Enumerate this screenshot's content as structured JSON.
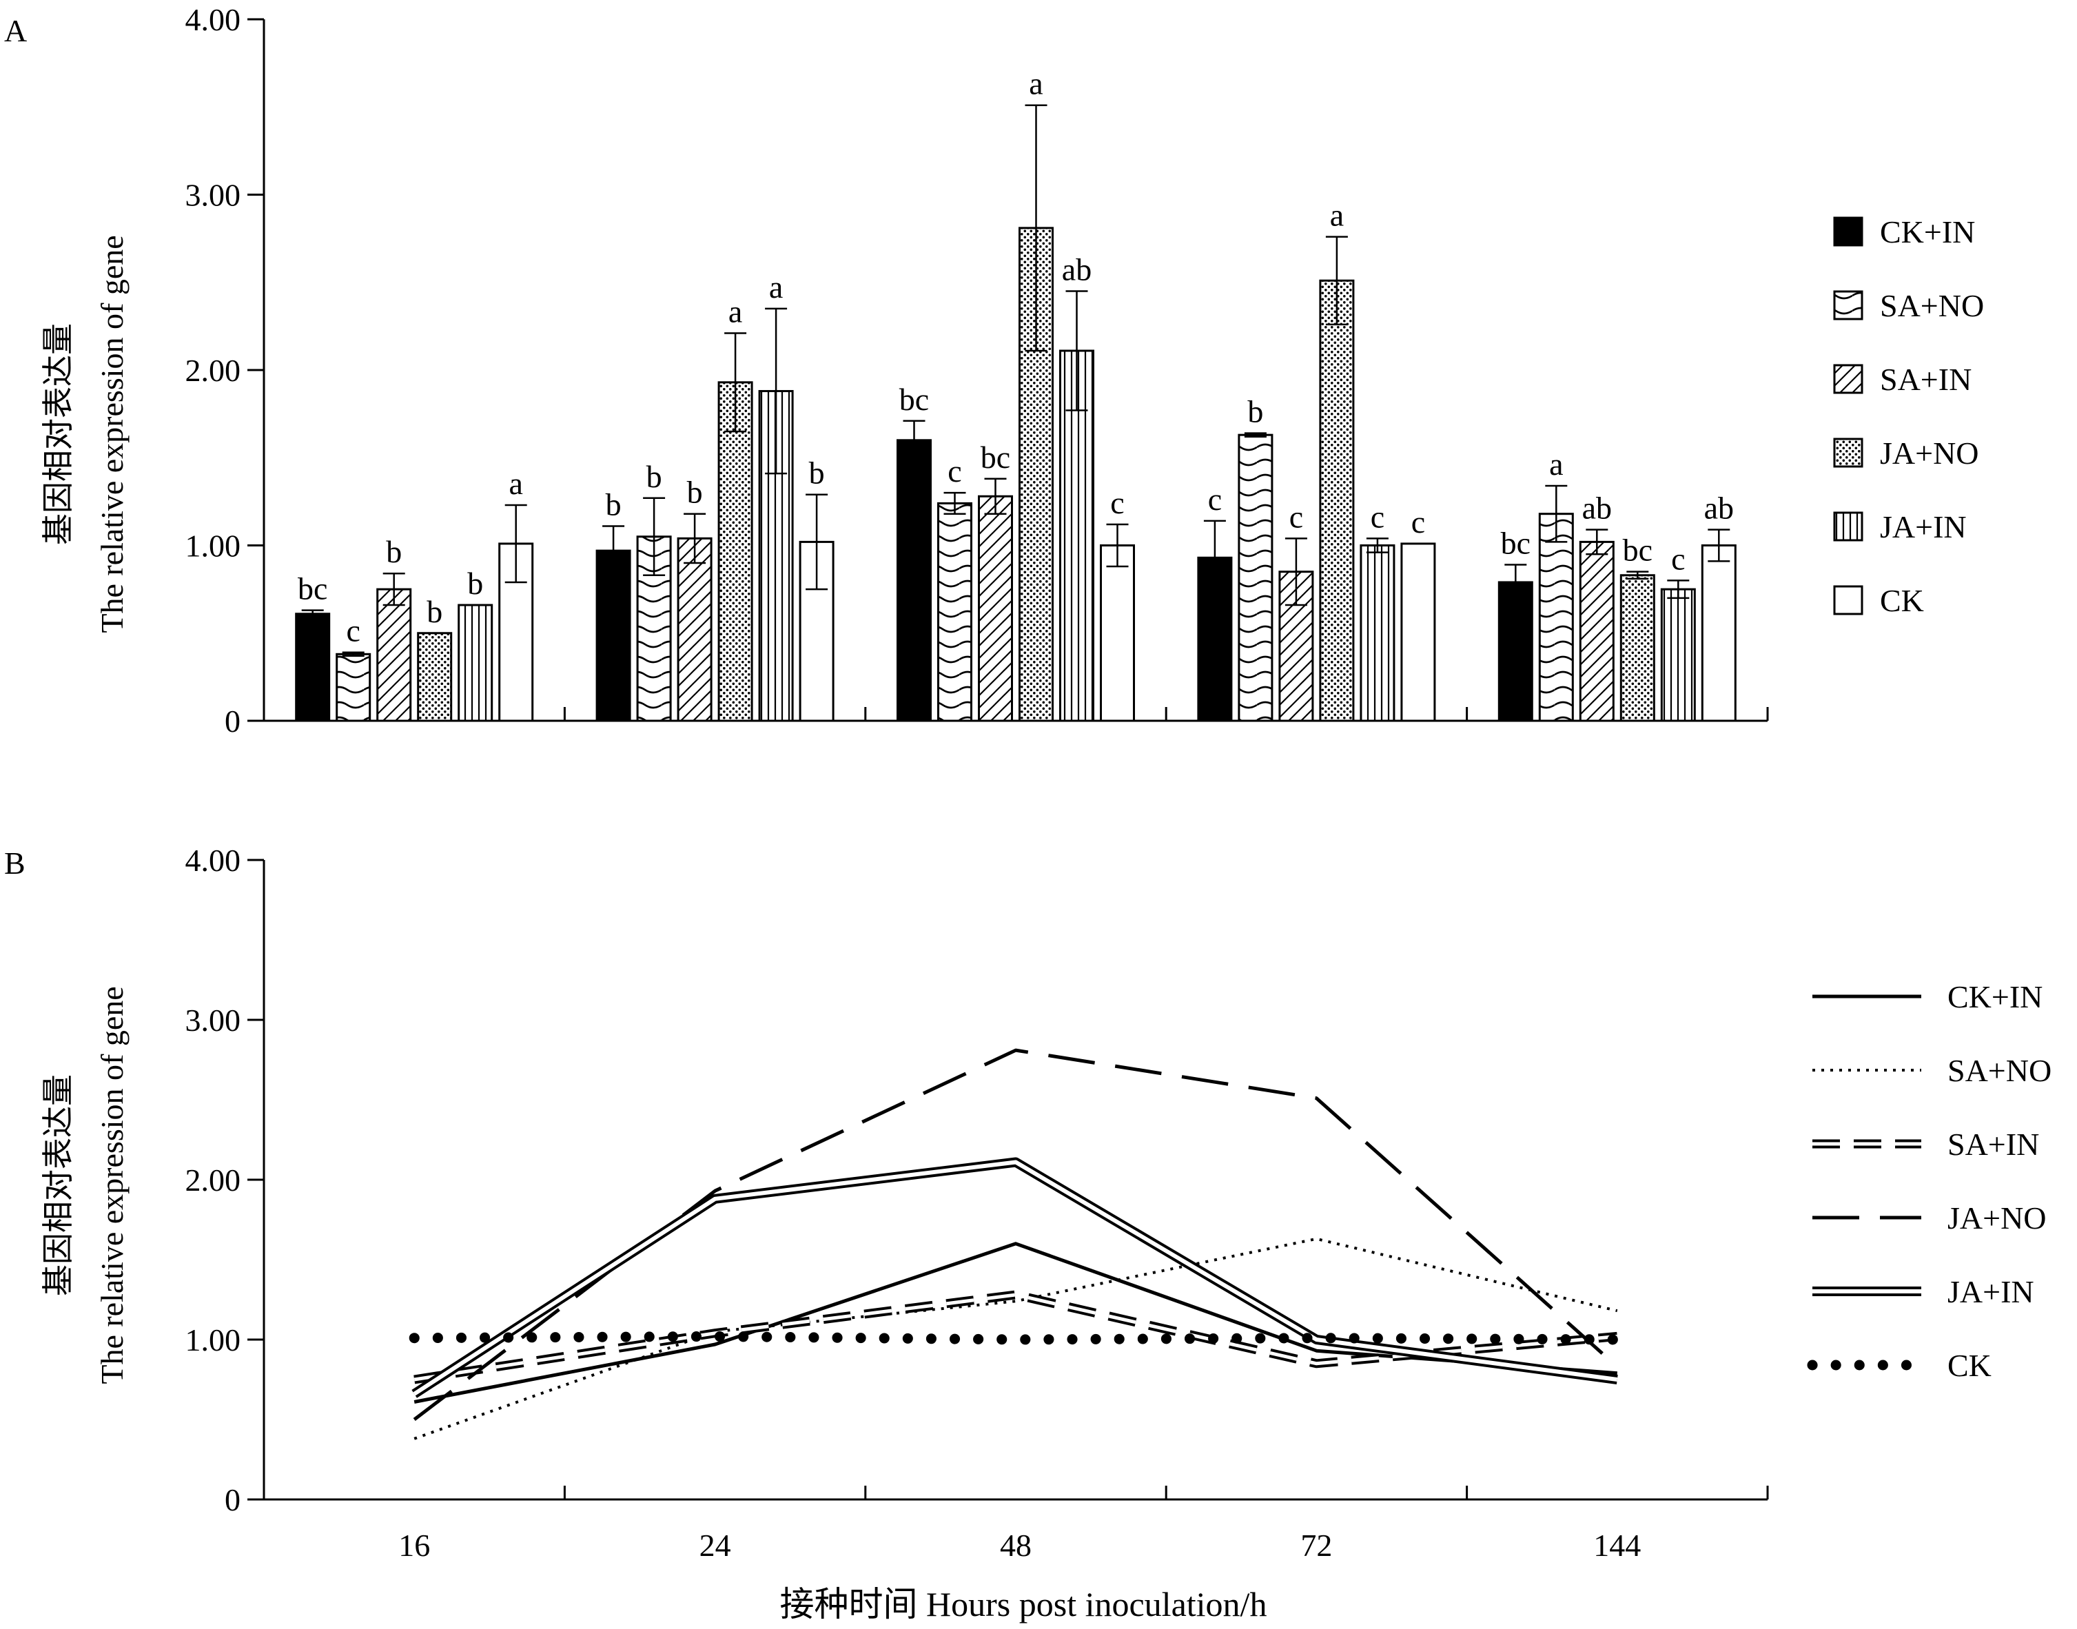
{
  "figure": {
    "panel_a_tag": "A",
    "panel_b_tag": "B",
    "ylabel_cn": "基因相对表达量",
    "ylabel_en": "The relative expression of gene",
    "xlabel": "接种时间 Hours post inoculation/h"
  },
  "chart_data": [
    {
      "type": "bar",
      "panel": "A",
      "categories": [
        "16",
        "24",
        "48",
        "72",
        "144"
      ],
      "ylim": [
        0,
        4
      ],
      "yticks": [
        0,
        1,
        2,
        3,
        4
      ],
      "ytick_labels": [
        "0",
        "1.00",
        "2.00",
        "3.00",
        "4.00"
      ],
      "legend_position": "right",
      "series": [
        {
          "name": "CK+IN",
          "values": [
            0.61,
            0.97,
            1.6,
            0.93,
            0.79
          ],
          "errors": [
            0.02,
            0.14,
            0.11,
            0.21,
            0.1
          ],
          "letters": [
            "bc",
            "b",
            "bc",
            "c",
            "bc"
          ],
          "pattern": "solid"
        },
        {
          "name": "SA+NO",
          "values": [
            0.38,
            1.05,
            1.24,
            1.63,
            1.18
          ],
          "errors": [
            0.01,
            0.22,
            0.06,
            0.01,
            0.16
          ],
          "letters": [
            "c",
            "b",
            "c",
            "b",
            "a"
          ],
          "pattern": "wave"
        },
        {
          "name": "SA+IN",
          "values": [
            0.75,
            1.04,
            1.28,
            0.85,
            1.02
          ],
          "errors": [
            0.09,
            0.14,
            0.1,
            0.19,
            0.07
          ],
          "letters": [
            "b",
            "b",
            "bc",
            "c",
            "ab"
          ],
          "pattern": "diag"
        },
        {
          "name": "JA+NO",
          "values": [
            0.5,
            1.93,
            2.81,
            2.51,
            0.83
          ],
          "errors": [
            0.0,
            0.28,
            0.7,
            0.25,
            0.02
          ],
          "letters": [
            "b",
            "a",
            "a",
            "a",
            "bc"
          ],
          "pattern": "dots"
        },
        {
          "name": "JA+IN",
          "values": [
            0.66,
            1.88,
            2.11,
            1.0,
            0.75
          ],
          "errors": [
            0.0,
            0.47,
            0.34,
            0.04,
            0.05
          ],
          "letters": [
            "b",
            "a",
            "ab",
            "c",
            "c"
          ],
          "pattern": "vlines"
        },
        {
          "name": "CK",
          "values": [
            1.01,
            1.02,
            1.0,
            1.01,
            1.0
          ],
          "errors": [
            0.22,
            0.27,
            0.12,
            0.0,
            0.09
          ],
          "letters": [
            "a",
            "b",
            "c",
            "c",
            "ab"
          ],
          "pattern": "empty"
        }
      ]
    },
    {
      "type": "line",
      "panel": "B",
      "categories": [
        "16",
        "24",
        "48",
        "72",
        "144"
      ],
      "ylim": [
        0,
        4
      ],
      "yticks": [
        0,
        1,
        2,
        3,
        4
      ],
      "ytick_labels": [
        "0",
        "1.00",
        "2.00",
        "3.00",
        "4.00"
      ],
      "legend_position": "right",
      "series": [
        {
          "name": "CK+IN",
          "values": [
            0.61,
            0.97,
            1.6,
            0.93,
            0.79
          ],
          "style": "solid"
        },
        {
          "name": "SA+NO",
          "values": [
            0.38,
            1.05,
            1.24,
            1.63,
            1.18
          ],
          "style": "dotted"
        },
        {
          "name": "SA+IN",
          "values": [
            0.75,
            1.04,
            1.28,
            0.85,
            1.02
          ],
          "style": "hollow-dash"
        },
        {
          "name": "JA+NO",
          "values": [
            0.5,
            1.93,
            2.81,
            2.51,
            0.83
          ],
          "style": "long-dash"
        },
        {
          "name": "JA+IN",
          "values": [
            0.66,
            1.88,
            2.11,
            1.0,
            0.75
          ],
          "style": "double"
        },
        {
          "name": "CK",
          "values": [
            1.01,
            1.02,
            1.0,
            1.01,
            1.0
          ],
          "style": "heavy-dots"
        }
      ]
    }
  ]
}
